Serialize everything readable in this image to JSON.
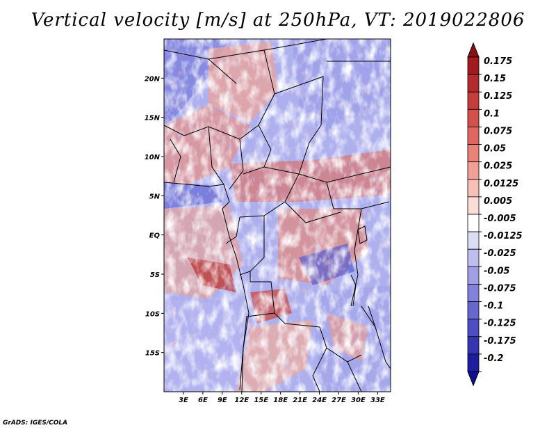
{
  "title": "Vertical velocity [m/s] at 250hPa, VT: 2019022806",
  "footer": "GrADS: IGES/COLA",
  "map": {
    "lon_range": [
      0,
      35
    ],
    "lat_range": [
      -20,
      25
    ],
    "lon_ticks": [
      {
        "value": 3,
        "label": "3E"
      },
      {
        "value": 6,
        "label": "6E"
      },
      {
        "value": 9,
        "label": "9E"
      },
      {
        "value": 12,
        "label": "12E"
      },
      {
        "value": 15,
        "label": "15E"
      },
      {
        "value": 18,
        "label": "18E"
      },
      {
        "value": 21,
        "label": "21E"
      },
      {
        "value": 24,
        "label": "24E"
      },
      {
        "value": 27,
        "label": "27E"
      },
      {
        "value": 30,
        "label": "30E"
      },
      {
        "value": 33,
        "label": "33E"
      }
    ],
    "lat_ticks": [
      {
        "value": 20,
        "label": "20N"
      },
      {
        "value": 15,
        "label": "15N"
      },
      {
        "value": 10,
        "label": "10N"
      },
      {
        "value": 5,
        "label": "5N"
      },
      {
        "value": 0,
        "label": "EQ"
      },
      {
        "value": -5,
        "label": "5S"
      },
      {
        "value": -10,
        "label": "10S"
      },
      {
        "value": -15,
        "label": "15S"
      }
    ]
  },
  "colorbar": {
    "levels": [
      {
        "label": "0.175",
        "color": "#a11a1f"
      },
      {
        "label": "0.15",
        "color": "#b52a2c"
      },
      {
        "label": "0.125",
        "color": "#c73d3a"
      },
      {
        "label": "0.1",
        "color": "#d6504a"
      },
      {
        "label": "0.075",
        "color": "#e0675f"
      },
      {
        "label": "0.05",
        "color": "#ea8277"
      },
      {
        "label": "0.025",
        "color": "#f2a096"
      },
      {
        "label": "0.0125",
        "color": "#f8bfb6"
      },
      {
        "label": "0.005",
        "color": "#fcdcd6"
      },
      {
        "label": "-0.005",
        "color": "#ffffff"
      },
      {
        "label": "-0.0125",
        "color": "#dcdcf7"
      },
      {
        "label": "-0.025",
        "color": "#bdbdf0"
      },
      {
        "label": "-0.05",
        "color": "#9f9fe7"
      },
      {
        "label": "-0.075",
        "color": "#8282dd"
      },
      {
        "label": "-0.1",
        "color": "#6767d1"
      },
      {
        "label": "-0.125",
        "color": "#4e4ec4"
      },
      {
        "label": "-0.175",
        "color": "#3535b4"
      },
      {
        "label": "-0.2",
        "color": "#1d1da2"
      }
    ],
    "top_arrow_color": "#8c0f16",
    "bottom_arrow_color": "#100f8f"
  }
}
